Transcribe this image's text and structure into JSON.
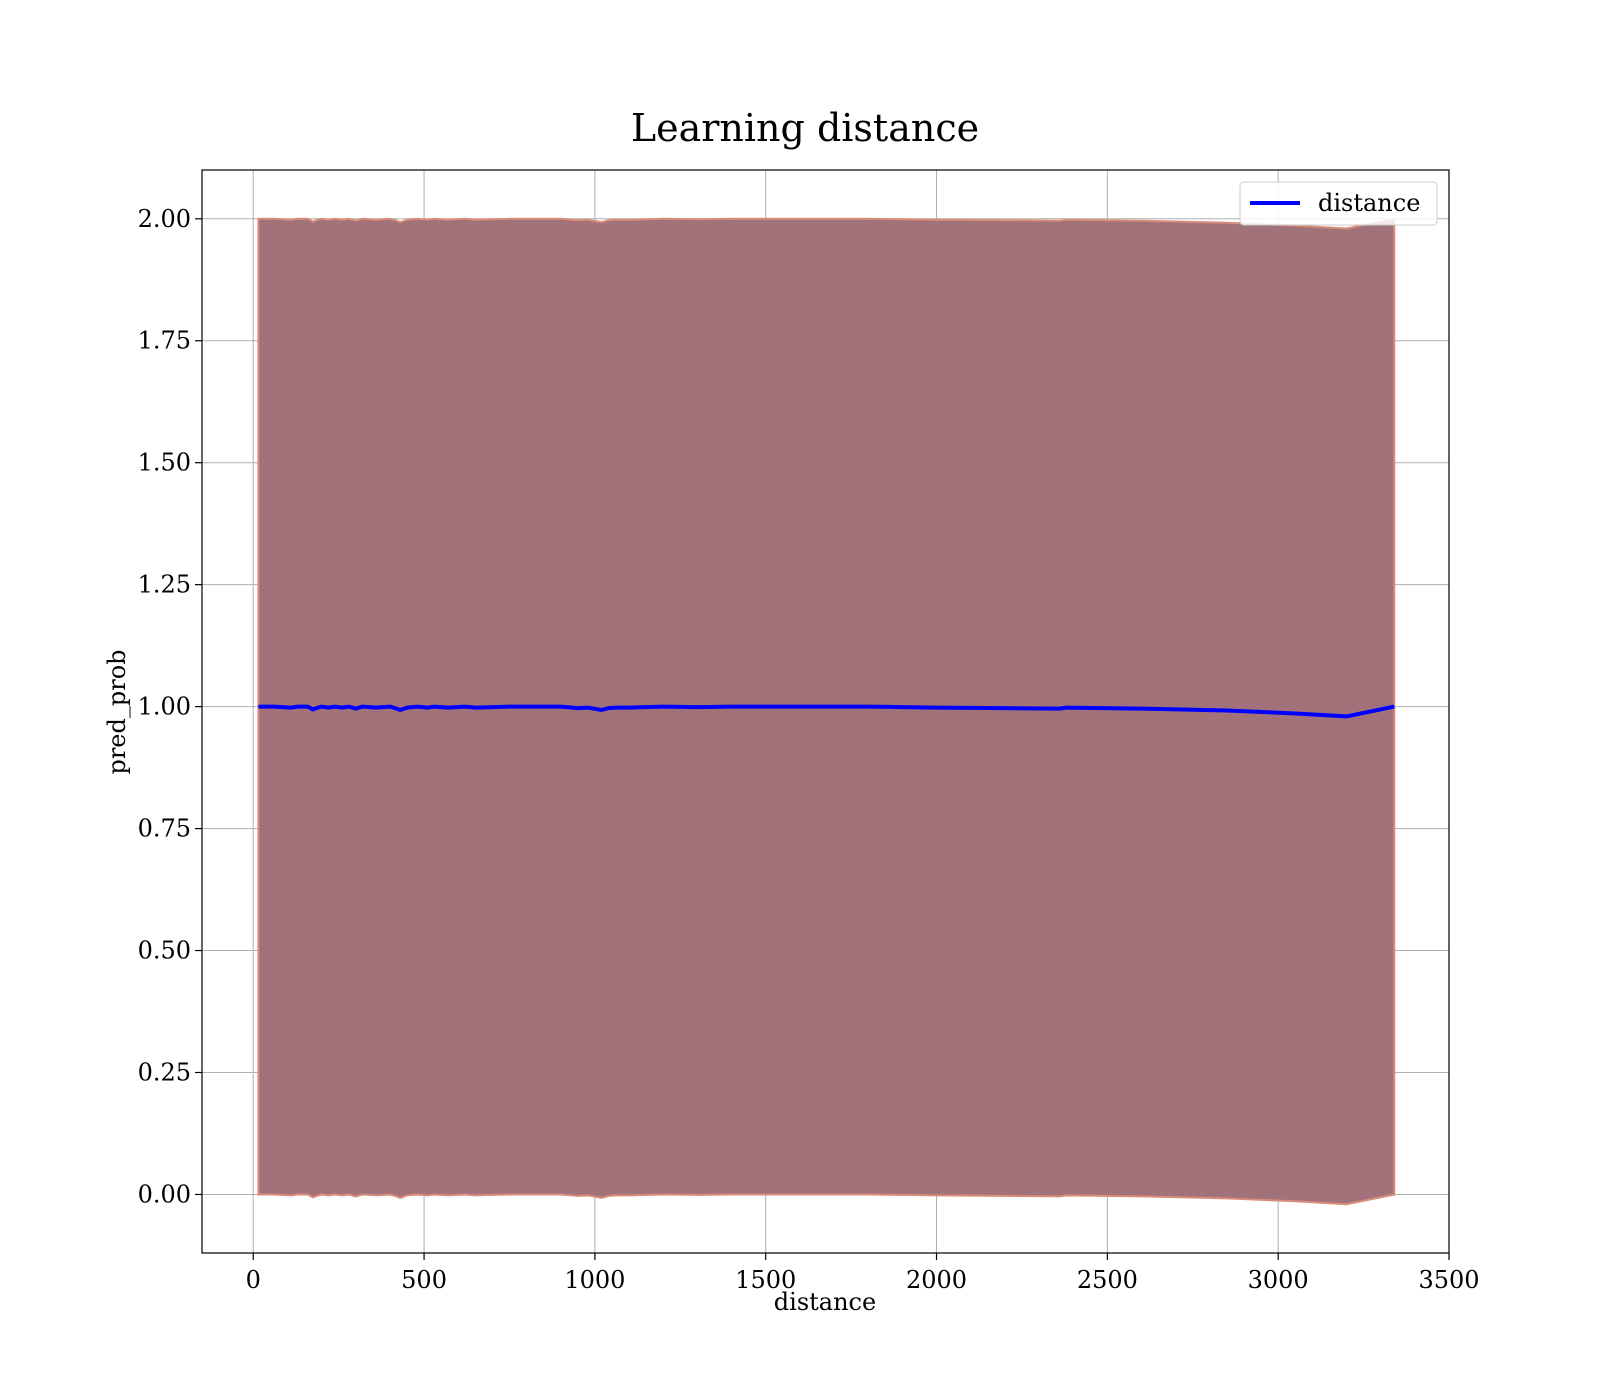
{
  "chart_data": {
    "type": "line",
    "title": "Learning distance",
    "xlabel": "distance",
    "ylabel": "pred_prob",
    "xlim": [
      -150,
      3500
    ],
    "ylim": [
      -0.12,
      2.1
    ],
    "xticks": [
      0,
      500,
      1000,
      1500,
      2000,
      2500,
      3000,
      3500
    ],
    "xtick_labels": [
      "0",
      "500",
      "1000",
      "1500",
      "2000",
      "2500",
      "3000",
      "3500"
    ],
    "yticks": [
      0.0,
      0.25,
      0.5,
      0.75,
      1.0,
      1.25,
      1.5,
      1.75,
      2.0
    ],
    "ytick_labels": [
      "0.00",
      "0.25",
      "0.50",
      "0.75",
      "1.00",
      "1.25",
      "1.50",
      "1.75",
      "2.00"
    ],
    "grid": true,
    "legend_position": "top-right",
    "colors": {
      "line": "#0000ff",
      "band_fill": "#a2727b",
      "band_edge": "#d98c7a",
      "grid": "#b0b0b0"
    },
    "series": [
      {
        "name": "distance",
        "x": [
          15,
          60,
          110,
          130,
          160,
          175,
          185,
          200,
          220,
          240,
          260,
          280,
          300,
          320,
          360,
          400,
          420,
          430,
          450,
          480,
          510,
          530,
          570,
          620,
          650,
          700,
          750,
          800,
          850,
          900,
          950,
          980,
          1020,
          1040,
          1060,
          1100,
          1200,
          1300,
          1400,
          1500,
          1600,
          1700,
          1800,
          1900,
          2000,
          2200,
          2360,
          2380,
          2600,
          2850,
          3050,
          3200,
          3340
        ],
        "y": [
          1.0,
          1.0,
          0.998,
          1.0,
          1.0,
          0.994,
          0.997,
          1.0,
          0.998,
          1.0,
          0.998,
          1.0,
          0.996,
          1.0,
          0.998,
          1.0,
          0.996,
          0.993,
          0.998,
          1.0,
          0.998,
          1.0,
          0.998,
          1.0,
          0.998,
          0.999,
          1.0,
          1.0,
          1.0,
          1.0,
          0.997,
          0.998,
          0.993,
          0.997,
          0.998,
          0.998,
          1.0,
          0.999,
          1.0,
          1.0,
          1.0,
          1.0,
          1.0,
          0.999,
          0.998,
          0.997,
          0.996,
          0.998,
          0.996,
          0.992,
          0.986,
          0.98,
          1.0
        ]
      }
    ],
    "band": {
      "x": [
        15,
        60,
        110,
        130,
        160,
        175,
        185,
        200,
        220,
        240,
        260,
        280,
        300,
        320,
        360,
        400,
        420,
        430,
        450,
        480,
        510,
        530,
        570,
        620,
        650,
        700,
        750,
        800,
        850,
        900,
        950,
        980,
        1020,
        1040,
        1060,
        1100,
        1200,
        1300,
        1400,
        1500,
        1600,
        1700,
        1800,
        1900,
        2000,
        2200,
        2360,
        2380,
        2600,
        2850,
        3050,
        3200,
        3340
      ],
      "upper": [
        2.0,
        2.0,
        1.998,
        2.0,
        2.0,
        1.994,
        1.997,
        2.0,
        1.998,
        2.0,
        1.998,
        2.0,
        1.996,
        2.0,
        1.998,
        2.0,
        1.996,
        1.993,
        1.998,
        2.0,
        1.998,
        2.0,
        1.998,
        2.0,
        1.998,
        1.999,
        2.0,
        2.0,
        2.0,
        2.0,
        1.997,
        1.998,
        1.993,
        1.997,
        1.998,
        1.998,
        2.0,
        1.999,
        2.0,
        2.0,
        2.0,
        2.0,
        2.0,
        1.999,
        1.998,
        1.997,
        1.996,
        1.998,
        1.996,
        1.992,
        1.986,
        1.98,
        2.0
      ],
      "lower": [
        0.0,
        0.0,
        -0.002,
        0.0,
        0.0,
        -0.006,
        -0.003,
        0.0,
        -0.002,
        0.0,
        -0.002,
        0.0,
        -0.004,
        0.0,
        -0.002,
        0.0,
        -0.004,
        -0.007,
        -0.002,
        0.0,
        -0.002,
        0.0,
        -0.002,
        0.0,
        -0.002,
        -0.001,
        0.0,
        0.0,
        0.0,
        0.0,
        -0.003,
        -0.002,
        -0.007,
        -0.003,
        -0.002,
        -0.002,
        0.0,
        -0.001,
        0.0,
        0.0,
        0.0,
        0.0,
        0.0,
        -0.001,
        -0.002,
        -0.003,
        -0.004,
        -0.002,
        -0.004,
        -0.008,
        -0.014,
        -0.02,
        0.0
      ]
    }
  }
}
